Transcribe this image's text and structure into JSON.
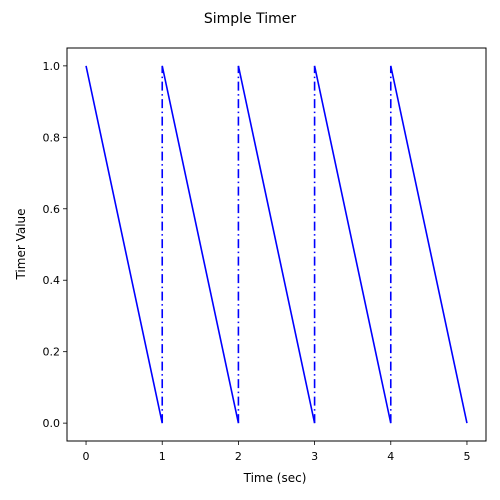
{
  "chart_data": {
    "type": "line",
    "title": "Simple Timer",
    "xlabel": "Time (sec)",
    "ylabel": "Timer Value",
    "xlim": [
      -0.25,
      5.25
    ],
    "ylim": [
      -0.05,
      1.05
    ],
    "xticks": [
      0,
      1,
      2,
      3,
      4,
      5
    ],
    "xtick_labels": [
      "0",
      "1",
      "2",
      "3",
      "4",
      "5"
    ],
    "yticks": [
      0.0,
      0.2,
      0.4,
      0.6,
      0.8,
      1.0
    ],
    "ytick_labels": [
      "0.0",
      "0.2",
      "0.4",
      "0.6",
      "0.8",
      "1.0"
    ],
    "grid": false,
    "line_color": "#0000ff",
    "segments": [
      {
        "style": "solid",
        "x": [
          0,
          1
        ],
        "y": [
          1.0,
          0.0
        ]
      },
      {
        "style": "dashdot",
        "x": [
          1,
          1
        ],
        "y": [
          0.0,
          1.0
        ]
      },
      {
        "style": "solid",
        "x": [
          1,
          2
        ],
        "y": [
          1.0,
          0.0
        ]
      },
      {
        "style": "dashdot",
        "x": [
          2,
          2
        ],
        "y": [
          0.0,
          1.0
        ]
      },
      {
        "style": "solid",
        "x": [
          2,
          3
        ],
        "y": [
          1.0,
          0.0
        ]
      },
      {
        "style": "dashdot",
        "x": [
          3,
          3
        ],
        "y": [
          0.0,
          1.0
        ]
      },
      {
        "style": "solid",
        "x": [
          3,
          4
        ],
        "y": [
          1.0,
          0.0
        ]
      },
      {
        "style": "dashdot",
        "x": [
          4,
          4
        ],
        "y": [
          0.0,
          1.0
        ]
      },
      {
        "style": "solid",
        "x": [
          4,
          5
        ],
        "y": [
          1.0,
          0.0
        ]
      }
    ]
  }
}
